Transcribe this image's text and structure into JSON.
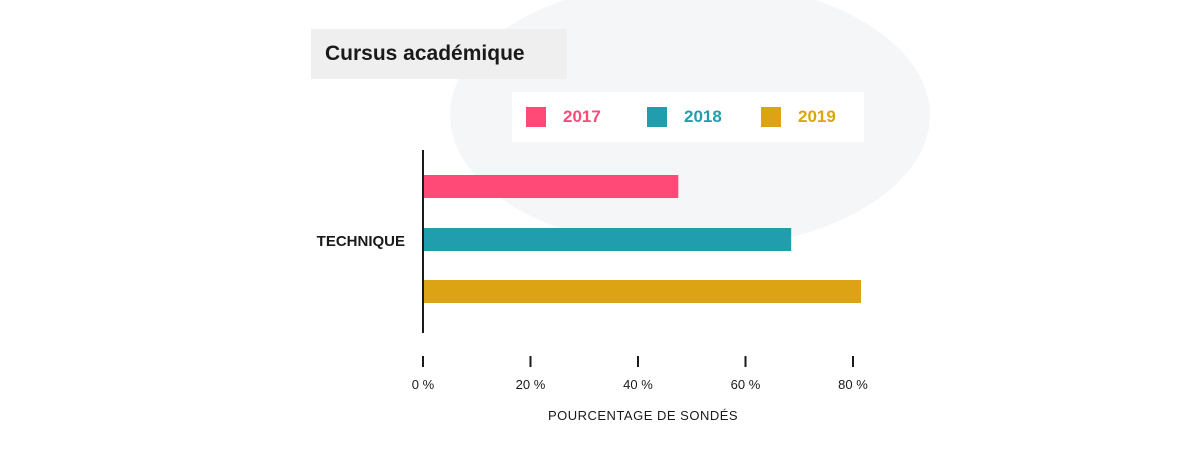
{
  "title": "Cursus académique",
  "legend": [
    {
      "label": "2017",
      "color": "#ff4a78"
    },
    {
      "label": "2018",
      "color": "#209eae"
    },
    {
      "label": "2019",
      "color": "#dca414"
    }
  ],
  "chart_data": {
    "type": "bar",
    "orientation": "horizontal",
    "categories": [
      "TECHNIQUE"
    ],
    "series": [
      {
        "name": "2017",
        "color": "#ff4a78",
        "values": [
          47.5
        ]
      },
      {
        "name": "2018",
        "color": "#209eae",
        "values": [
          68.5
        ]
      },
      {
        "name": "2019",
        "color": "#dca414",
        "values": [
          81.5
        ]
      }
    ],
    "xlabel": "POURCENTAGE DE SONDÉS",
    "ylabel": "",
    "xlim": [
      0,
      80
    ],
    "xticks": [
      0,
      20,
      40,
      60,
      80
    ],
    "xtick_labels": [
      "0 %",
      "20 %",
      "40 %",
      "60 %",
      "80 %"
    ],
    "grid": false,
    "legend_position": "top"
  }
}
